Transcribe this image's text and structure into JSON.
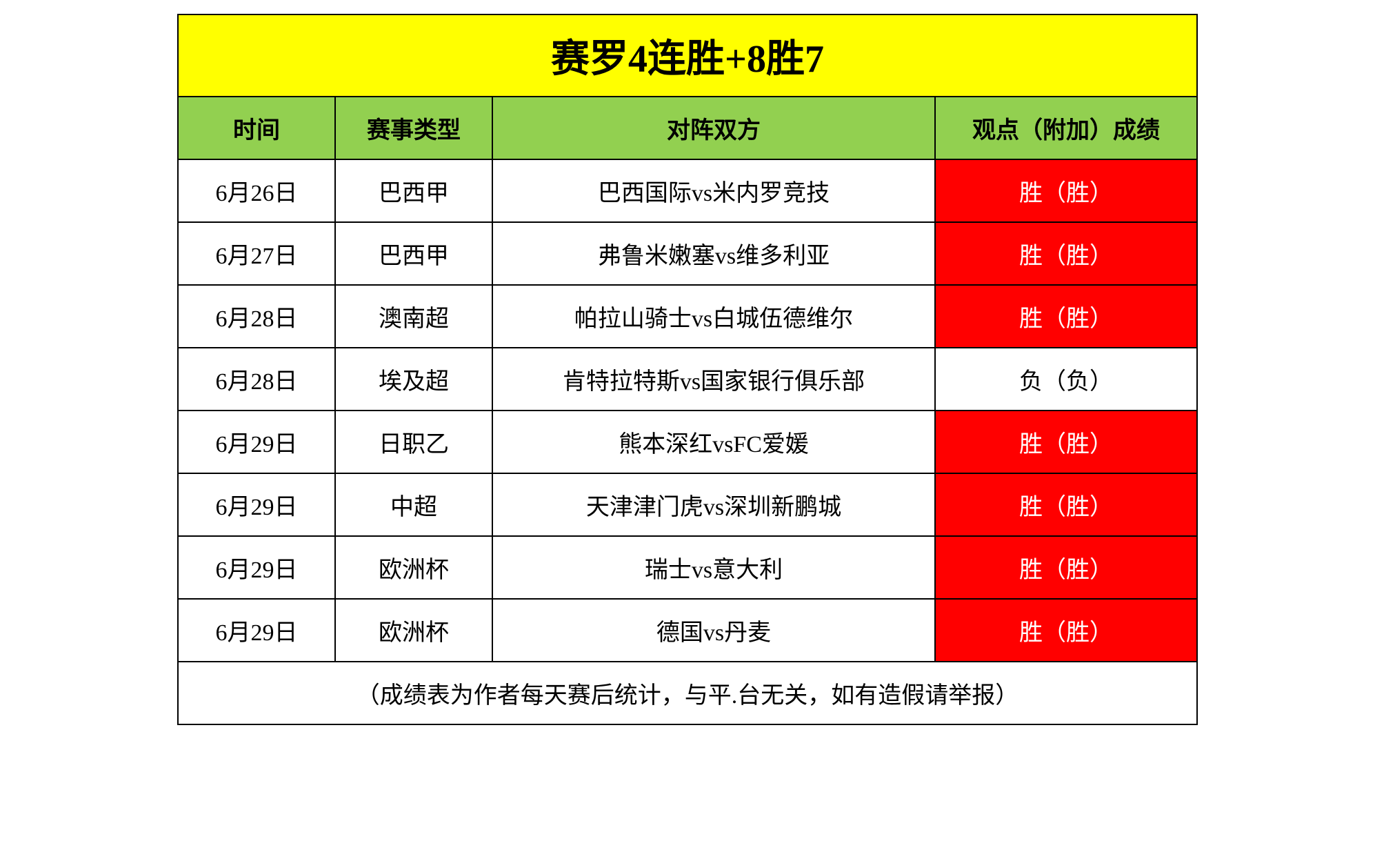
{
  "title": "赛罗4连胜+8胜7",
  "title_bg": "#ffff00",
  "title_color": "#000000",
  "header_bg": "#92d050",
  "header_color": "#000000",
  "win_bg": "#ff0000",
  "win_color": "#ffffff",
  "loss_bg": "#ffffff",
  "loss_color": "#000000",
  "columns": {
    "date": "时间",
    "type": "赛事类型",
    "match": "对阵双方",
    "result": "观点（附加）成绩"
  },
  "rows": [
    {
      "date": "6月26日",
      "type": "巴西甲",
      "match": "巴西国际vs米内罗竞技",
      "result": "胜（胜）",
      "win": true
    },
    {
      "date": "6月27日",
      "type": "巴西甲",
      "match": "弗鲁米嫩塞vs维多利亚",
      "result": "胜（胜）",
      "win": true
    },
    {
      "date": "6月28日",
      "type": "澳南超",
      "match": "帕拉山骑士vs白城伍德维尔",
      "result": "胜（胜）",
      "win": true
    },
    {
      "date": "6月28日",
      "type": "埃及超",
      "match": "肯特拉特斯vs国家银行俱乐部",
      "result": "负（负）",
      "win": false
    },
    {
      "date": "6月29日",
      "type": "日职乙",
      "match": "熊本深红vsFC爱媛",
      "result": "胜（胜）",
      "win": true
    },
    {
      "date": "6月29日",
      "type": "中超",
      "match": "天津津门虎vs深圳新鹏城",
      "result": "胜（胜）",
      "win": true
    },
    {
      "date": "6月29日",
      "type": "欧洲杯",
      "match": "瑞士vs意大利",
      "result": "胜（胜）",
      "win": true
    },
    {
      "date": "6月29日",
      "type": "欧洲杯",
      "match": "德国vs丹麦",
      "result": "胜（胜）",
      "win": true
    }
  ],
  "footer": "（成绩表为作者每天赛后统计，与平.台无关，如有造假请举报）"
}
